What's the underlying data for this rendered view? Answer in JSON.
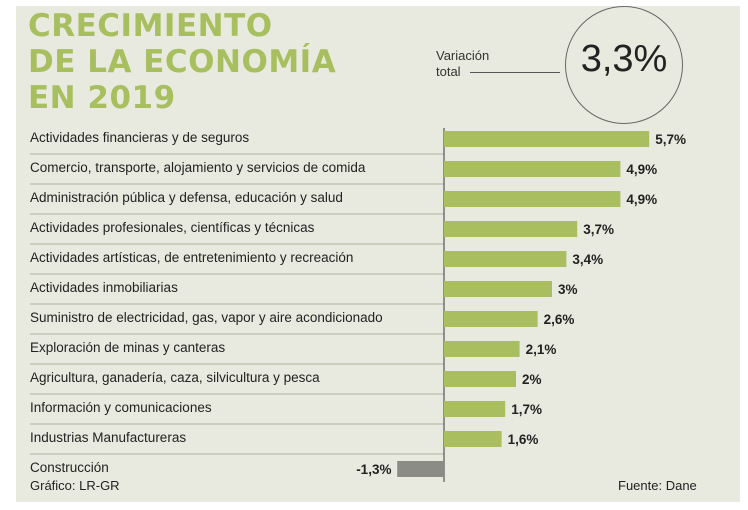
{
  "title_lines": [
    "CRECIMIENTO",
    "DE LA ECONOMÍA",
    "EN 2019"
  ],
  "total": {
    "label_line1": "Variación",
    "label_line2": "total",
    "value": "3,3%"
  },
  "colors": {
    "title": "#a7bf5e",
    "positive_bar": "#a9be5f",
    "negative_bar": "#8c8c86",
    "background": "#e9eadf"
  },
  "chart_data": {
    "type": "bar",
    "orientation": "horizontal",
    "title": "CRECIMIENTO DE LA ECONOMÍA EN 2019",
    "categories": [
      "Actividades financieras y de seguros",
      "Comercio, transporte, alojamiento y servicios de comida",
      "Administración pública y defensa, educación y salud",
      "Actividades profesionales, científicas y técnicas",
      "Actividades artísticas, de entretenimiento y recreación",
      "Actividades inmobiliarias",
      "Suministro de electricidad, gas, vapor y aire acondicionado",
      "Exploración de minas y canteras",
      "Agricultura, ganadería, caza, silvicultura y pesca",
      "Información y comunicaciones",
      "Industrias Manufactureras",
      "Construcción"
    ],
    "values": [
      5.7,
      4.9,
      4.9,
      3.7,
      3.4,
      3,
      2.6,
      2.1,
      2,
      1.7,
      1.6,
      -1.3
    ],
    "value_labels": [
      "5,7%",
      "4,9%",
      "4,9%",
      "3,7%",
      "3,4%",
      "3%",
      "2,6%",
      "2,1%",
      "2%",
      "1,7%",
      "1,6%",
      "-1,3%"
    ]
  },
  "footer": {
    "credit": "Gráfico: LR-GR",
    "source": "Fuente: Dane"
  }
}
